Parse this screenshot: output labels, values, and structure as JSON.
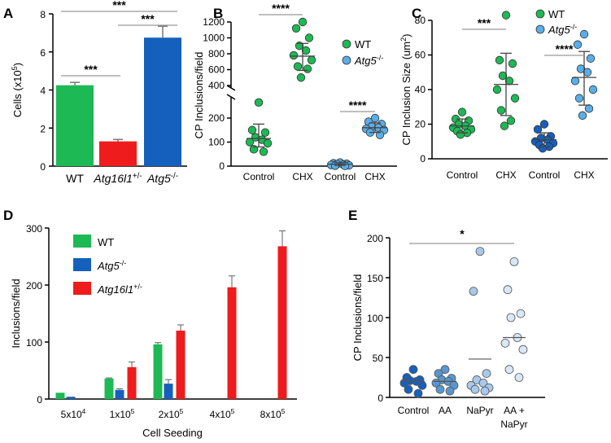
{
  "chart_data": [
    {
      "panel": "A",
      "type": "bar",
      "ylabel": "Cells (x10",
      "ylabel_sup": "5",
      "ylabel_end": ")",
      "ylim": [
        0,
        8
      ],
      "yticks": [
        "0",
        "2",
        "4",
        "6",
        "8"
      ],
      "categories": [
        {
          "text": "WT",
          "sup": "",
          "italic": false
        },
        {
          "text": "Atg16l1",
          "sup": "+/-",
          "italic": true
        },
        {
          "text": "Atg5",
          "sup": "-/-",
          "italic": true
        }
      ],
      "values": [
        4.25,
        1.3,
        6.75
      ],
      "errors": [
        0.15,
        0.1,
        0.6
      ],
      "colors": [
        "#1db954",
        "#ee1c1c",
        "#1560bd"
      ],
      "significance": [
        {
          "from": 0,
          "to": 1,
          "label": "***"
        },
        {
          "from": 1,
          "to": 2,
          "label": "***"
        },
        {
          "from": 0,
          "to": 2,
          "label": "***"
        }
      ]
    },
    {
      "panel": "B",
      "type": "scatter",
      "ylabel": "CP Inclusions/field",
      "yticks_lower": [
        "0",
        "100",
        "200"
      ],
      "yticks_upper": [
        "400",
        "600",
        "800",
        "1000",
        "1200"
      ],
      "categories": [
        "Control",
        "CHX",
        "Control",
        "CHX"
      ],
      "legend": [
        {
          "label": "WT",
          "italic": false,
          "sup": "",
          "color": "#1db954"
        },
        {
          "label": "Atg5",
          "italic": true,
          "sup": "-/-",
          "color": "#5aaee8"
        }
      ],
      "groups": [
        {
          "color": "#1db954",
          "mean": 115,
          "sd": [
            80,
            175
          ],
          "points": [
            265,
            150,
            140,
            120,
            110,
            100,
            95,
            70,
            60
          ]
        },
        {
          "color": "#1db954",
          "mean": 770,
          "sd": [
            590,
            930
          ],
          "points": [
            1200,
            1120,
            1000,
            900,
            840,
            780,
            720,
            640,
            610,
            500
          ]
        },
        {
          "color": "#5aaee8",
          "mean": 8,
          "sd": [
            3,
            14
          ],
          "points": [
            15,
            12,
            10,
            8,
            6,
            5,
            3,
            2,
            1
          ]
        },
        {
          "color": "#5aaee8",
          "mean": 160,
          "sd": [
            140,
            180
          ],
          "points": [
            200,
            185,
            175,
            165,
            160,
            155,
            150,
            140,
            130
          ]
        }
      ],
      "significance": [
        {
          "from": 0,
          "to": 1,
          "label": "****"
        },
        {
          "from": 2,
          "to": 3,
          "label": "****"
        }
      ]
    },
    {
      "panel": "C",
      "type": "scatter",
      "ylabel": "CP Inclusion Size (um",
      "ylabel_sup": "2",
      "ylabel_end": ")",
      "ylim": [
        0,
        80
      ],
      "yticks": [
        "0",
        "20",
        "40",
        "60",
        "80"
      ],
      "categories": [
        "Control",
        "CHX",
        "Control",
        "CHX"
      ],
      "legend": [
        {
          "label": "WT",
          "italic": false,
          "sup": "",
          "color": "#1db954"
        },
        {
          "label": "Atg5",
          "italic": true,
          "sup": "-/-",
          "color": "#5aaee8"
        }
      ],
      "groups": [
        {
          "color": "#1db954",
          "mean": 19,
          "sd": [
            15,
            23
          ],
          "points": [
            27,
            23,
            22,
            20,
            19,
            18,
            17,
            16,
            15,
            14
          ]
        },
        {
          "color": "#1db954",
          "mean": 43,
          "sd": [
            25,
            61
          ],
          "points": [
            83,
            57,
            55,
            48,
            45,
            40,
            35,
            28,
            22,
            19
          ]
        },
        {
          "color": "#1560bd",
          "mean": 11,
          "sd": [
            7,
            15
          ],
          "points": [
            20,
            17,
            13,
            12,
            11,
            10,
            9,
            8,
            7,
            6
          ]
        },
        {
          "color": "#5aaee8",
          "mean": 47,
          "sd": [
            31,
            62
          ],
          "points": [
            72,
            66,
            58,
            52,
            50,
            45,
            40,
            35,
            29,
            25
          ]
        }
      ],
      "significance": [
        {
          "from": 0,
          "to": 1,
          "label": "***"
        },
        {
          "from": 2,
          "to": 3,
          "label": "****"
        }
      ]
    },
    {
      "panel": "D",
      "type": "bar",
      "xlabel": "Cell Seeding",
      "ylabel": "Inclusions/field",
      "ylim": [
        0,
        300
      ],
      "yticks": [
        "0",
        "100",
        "200",
        "300"
      ],
      "categories": [
        {
          "base": "5x10",
          "sup": "4"
        },
        {
          "base": "1x10",
          "sup": "5"
        },
        {
          "base": "2x10",
          "sup": "5"
        },
        {
          "base": "4x10",
          "sup": "5"
        },
        {
          "base": "8x10",
          "sup": "5"
        }
      ],
      "series": [
        {
          "name": "WT",
          "italic": false,
          "sup": "",
          "color": "#1db954",
          "values": [
            11,
            36,
            96,
            0,
            0
          ],
          "errors": [
            0,
            1,
            3,
            0,
            0
          ]
        },
        {
          "name": "Atg5",
          "italic": true,
          "sup": "-/-",
          "color": "#1560bd",
          "values": [
            4,
            16,
            27,
            0,
            0
          ],
          "errors": [
            0,
            2,
            7,
            0,
            0
          ]
        },
        {
          "name": "Atg16l1",
          "italic": true,
          "sup": "+/-",
          "color": "#ee1c1c",
          "values": [
            0,
            56,
            120,
            196,
            268
          ],
          "errors": [
            0,
            9,
            10,
            20,
            27
          ]
        }
      ]
    },
    {
      "panel": "E",
      "type": "scatter",
      "ylabel": "CP Inclusions/field",
      "ylim": [
        0,
        200
      ],
      "yticks": [
        "0",
        "50",
        "100",
        "150",
        "200"
      ],
      "categories": [
        {
          "l1": "Control",
          "l2": ""
        },
        {
          "l1": "AA",
          "l2": ""
        },
        {
          "l1": "NaPyr",
          "l2": ""
        },
        {
          "l1": "AA +",
          "l2": "NaPyr"
        }
      ],
      "groups": [
        {
          "color": "#1560bd",
          "mean": 20,
          "points": [
            35,
            25,
            22,
            21,
            20,
            18,
            15,
            10,
            5
          ]
        },
        {
          "color": "#5a96cf",
          "mean": 20,
          "points": [
            35,
            30,
            24,
            22,
            20,
            18,
            15,
            10,
            8
          ]
        },
        {
          "color": "#a9c8ea",
          "mean": 48,
          "points": [
            183,
            133,
            30,
            22,
            18,
            15,
            12,
            10,
            8
          ]
        },
        {
          "color": "#d9e7f6",
          "mean": 75,
          "points": [
            170,
            135,
            105,
            100,
            75,
            68,
            60,
            35,
            25
          ]
        }
      ],
      "significance": [
        {
          "from": 0,
          "to": 3,
          "label": "*"
        }
      ]
    }
  ]
}
